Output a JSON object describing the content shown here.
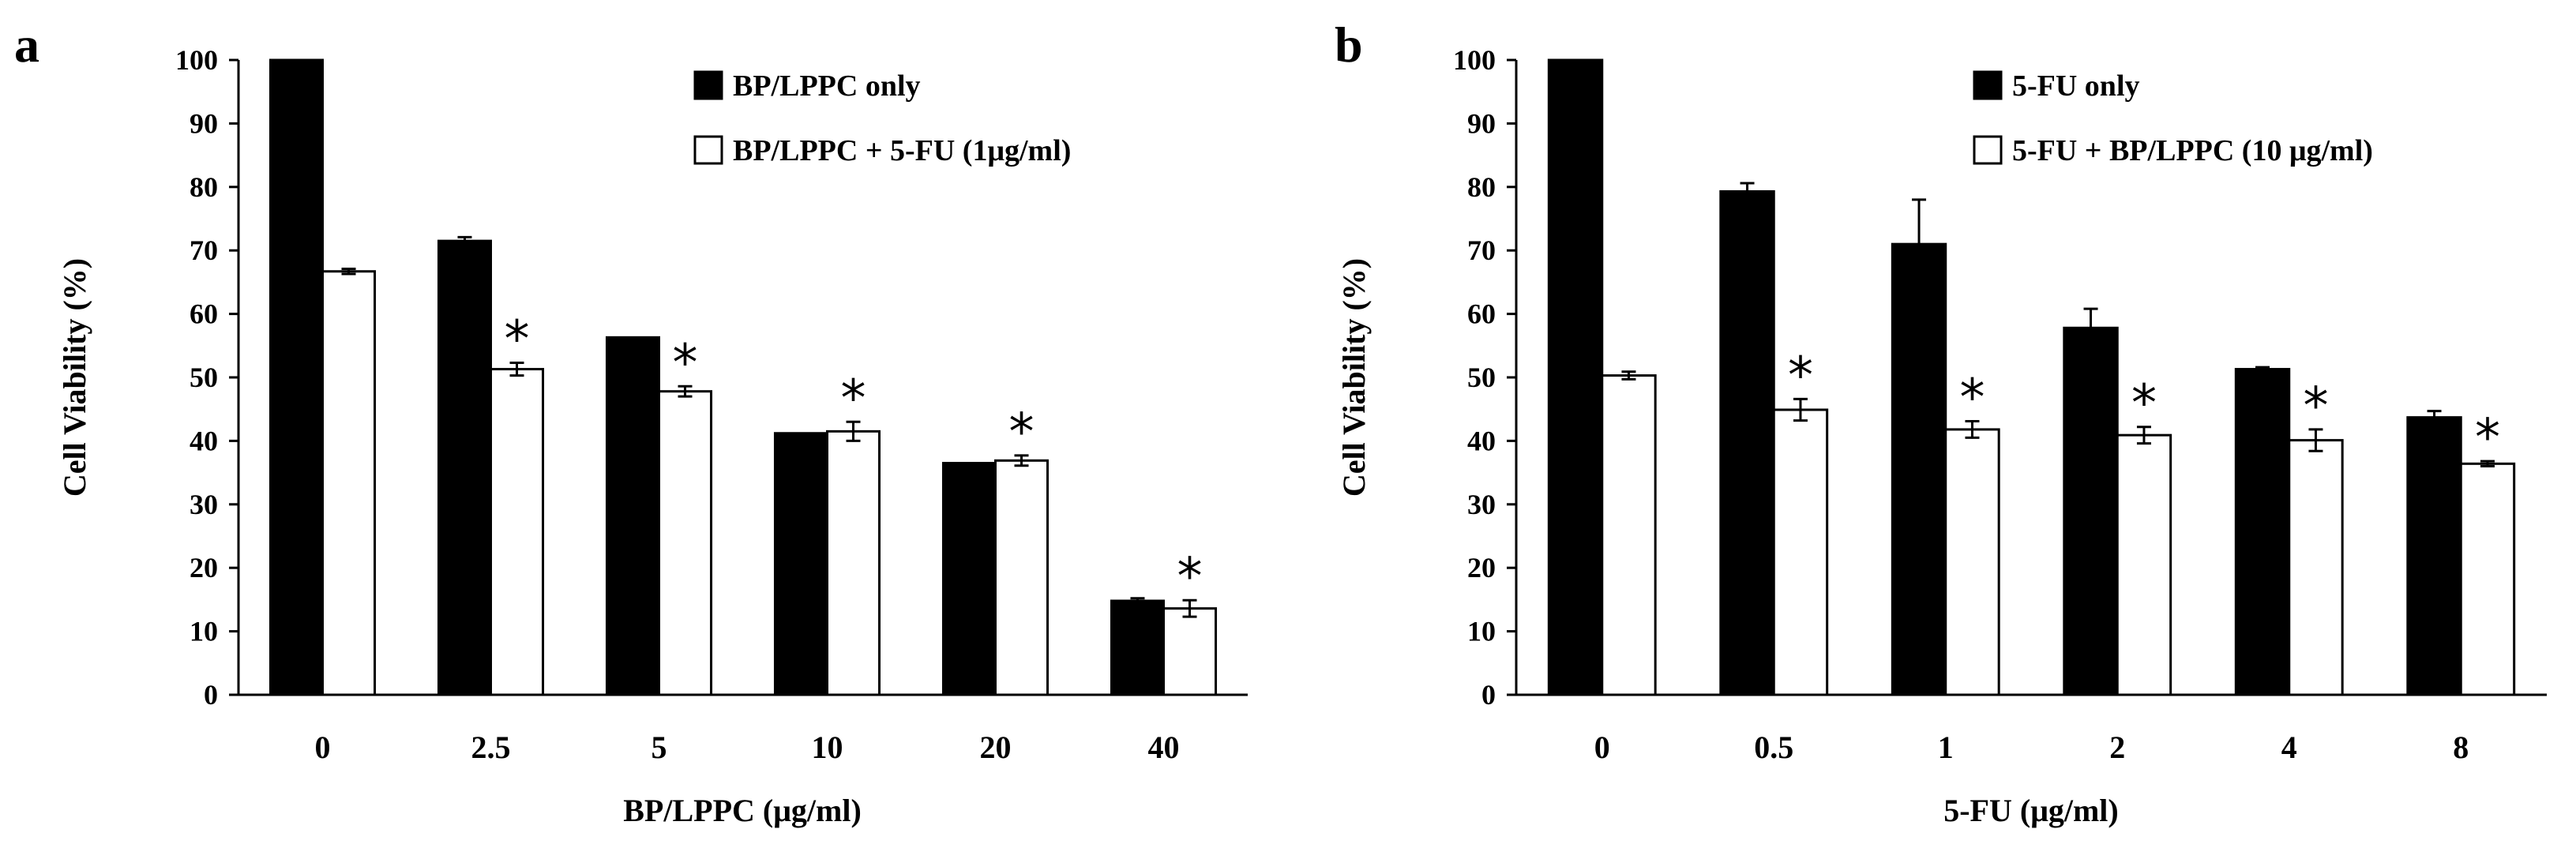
{
  "chart_data": [
    {
      "panel": "a",
      "type": "bar",
      "xlabel": "BP/LPPC (μg/ml)",
      "ylabel": "Cell Viability (%)",
      "ylim": [
        0,
        100
      ],
      "yticks": [
        "0",
        "10",
        "20",
        "30",
        "40",
        "50",
        "60",
        "70",
        "80",
        "90",
        "100"
      ],
      "categories": [
        "0",
        "2.5",
        "5",
        "10",
        "20",
        "40"
      ],
      "series": [
        {
          "name": "BP/LPPC only",
          "color": "#000000",
          "values": [
            100,
            71.5,
            56.3,
            41.2,
            36.5,
            14.8
          ],
          "errors": [
            0,
            0.6,
            0,
            0,
            0,
            0.4
          ]
        },
        {
          "name": "BP/LPPC +  5-FU (1μg/ml)",
          "color": "#ffffff",
          "values": [
            66.7,
            51.3,
            47.8,
            41.5,
            36.9,
            13.6
          ],
          "errors": [
            0.4,
            1.0,
            0.8,
            1.5,
            0.8,
            1.3
          ]
        }
      ],
      "annotations": [
        "",
        "*",
        "*",
        "*",
        "*",
        "*"
      ],
      "legend_position": "top-right"
    },
    {
      "panel": "b",
      "type": "bar",
      "xlabel": "5-FU (μg/ml)",
      "ylabel": "Cell Viability (%)",
      "ylim": [
        0,
        100
      ],
      "yticks": [
        "0",
        "10",
        "20",
        "30",
        "40",
        "50",
        "60",
        "70",
        "80",
        "90",
        "100"
      ],
      "categories": [
        "0",
        "0.5",
        "1",
        "2",
        "4",
        "8"
      ],
      "series": [
        {
          "name": "5-FU only",
          "color": "#000000",
          "values": [
            100,
            79.3,
            71.0,
            57.8,
            51.3,
            43.7
          ],
          "errors": [
            0,
            1.3,
            7.0,
            3.0,
            0.3,
            1.0
          ]
        },
        {
          "name": "5-FU + BP/LPPC (10 μg/ml)",
          "color": "#ffffff",
          "values": [
            50.3,
            44.9,
            41.8,
            40.9,
            40.1,
            36.4
          ],
          "errors": [
            0.6,
            1.7,
            1.3,
            1.3,
            1.7,
            0.4
          ]
        }
      ],
      "annotations": [
        "",
        "*",
        "*",
        "*",
        "*",
        "*"
      ],
      "legend_position": "top-right"
    }
  ]
}
